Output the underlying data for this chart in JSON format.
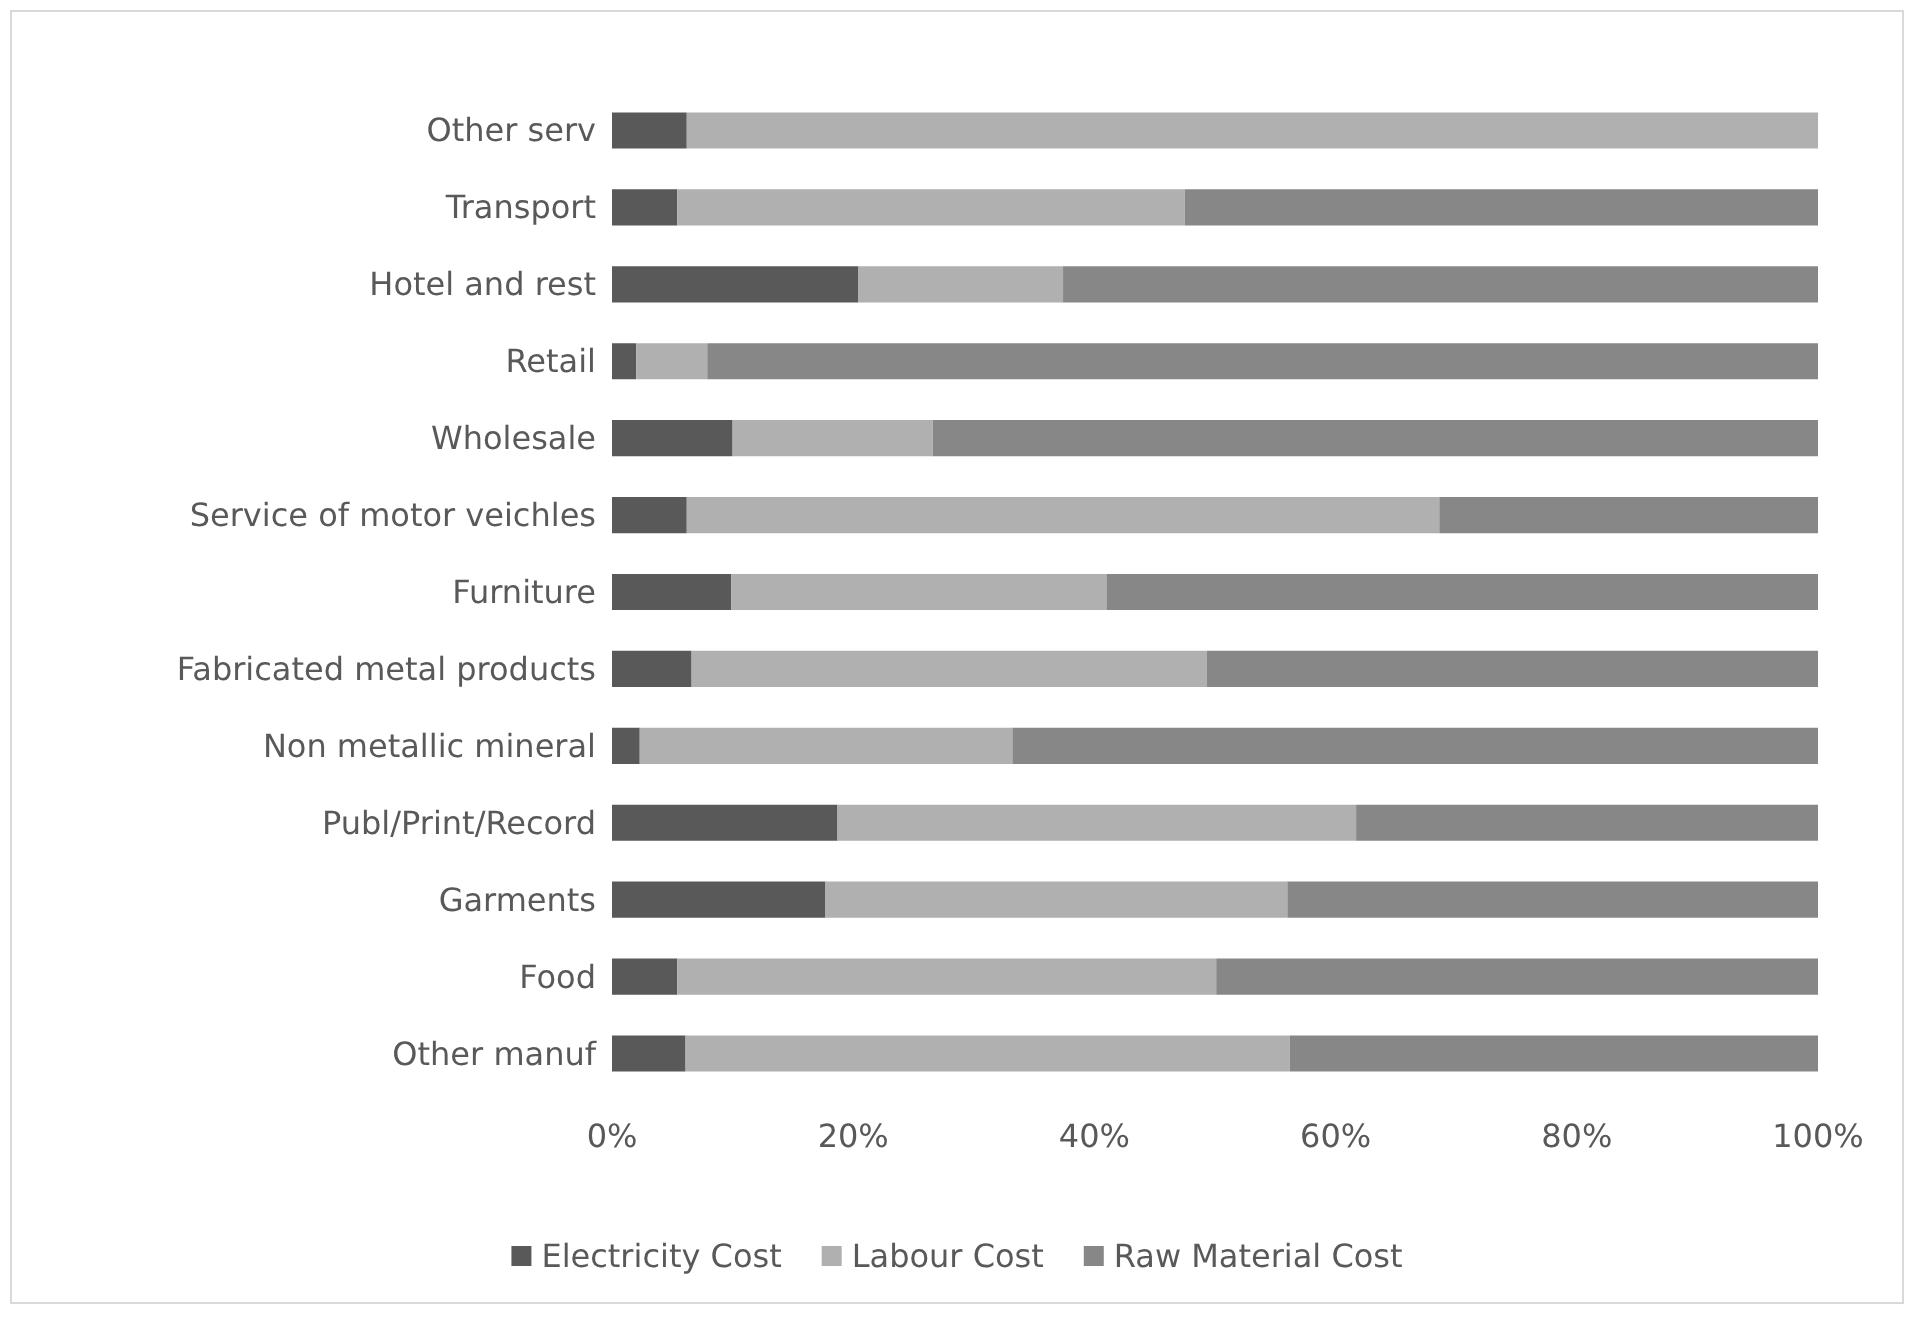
{
  "chart_data": {
    "type": "bar",
    "orientation": "horizontal",
    "stacked": true,
    "categories": [
      "Other serv",
      "Transport",
      "Hotel and rest",
      "Retail",
      "Wholesale",
      "Service of motor veichles",
      "Furniture",
      "Fabricated metal products",
      "Non metallic mineral",
      "Publ/Print/Record",
      "Garments",
      "Food",
      "Other manuf"
    ],
    "series": [
      {
        "name": "Electricity Cost",
        "color": "#595959",
        "values": [
          6.2,
          5.4,
          20.4,
          2.0,
          10.0,
          6.2,
          9.9,
          6.6,
          2.3,
          18.7,
          17.7,
          5.4,
          6.1
        ]
      },
      {
        "name": "Labour Cost",
        "color": "#b0b0b0",
        "values": [
          93.8,
          42.1,
          17.0,
          5.9,
          16.6,
          62.4,
          31.1,
          42.7,
          30.9,
          43.0,
          38.3,
          44.7,
          50.1
        ]
      },
      {
        "name": "Raw Material Cost",
        "color": "#878787",
        "values": [
          0,
          52.5,
          62.6,
          92.1,
          73.4,
          31.4,
          59.0,
          50.7,
          66.8,
          38.3,
          44.0,
          49.9,
          43.8
        ]
      }
    ],
    "xlim": [
      0,
      100
    ],
    "xticks": [
      {
        "value": 0,
        "label": "0%"
      },
      {
        "value": 20,
        "label": "20%"
      },
      {
        "value": 40,
        "label": "40%"
      },
      {
        "value": 60,
        "label": "60%"
      },
      {
        "value": 80,
        "label": "80%"
      },
      {
        "value": 100,
        "label": "100%"
      }
    ],
    "grid": false,
    "legend": "bottom"
  }
}
